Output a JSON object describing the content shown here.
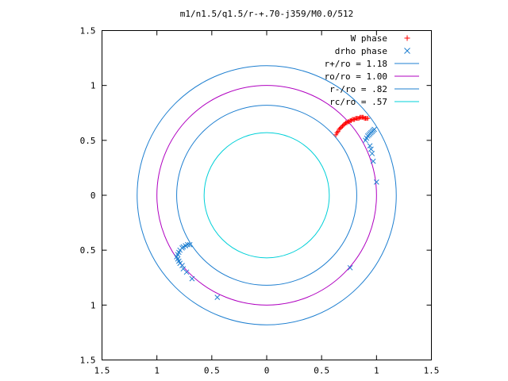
{
  "chart_data": {
    "type": "scatter",
    "title": "m1/n1.5/q1.5/r-+.70-j359/M0.0/512",
    "xlim": [
      -1.5,
      1.5
    ],
    "ylim": [
      -1.5,
      1.5
    ],
    "x_ticks": [
      -1.5,
      -1,
      -0.5,
      0,
      0.5,
      1,
      1.5
    ],
    "y_ticks": [
      -1.5,
      -1,
      -0.5,
      0,
      0.5,
      1,
      1.5
    ],
    "x_tick_labels": [
      "1.5",
      "1",
      "0.5",
      "0",
      "0.5",
      "1",
      "1.5"
    ],
    "y_tick_labels": [
      "1.5",
      "1",
      "0.5",
      "0",
      "0.5",
      "1",
      "1.5"
    ],
    "grid": false,
    "legend_position": "top-right",
    "circles": [
      {
        "name": "r+/ro = 1.18",
        "radius": 1.18,
        "color": "#1e7fd0"
      },
      {
        "name": "ro/ro = 1.00",
        "radius": 1.0,
        "color": "#b000c0"
      },
      {
        "name": "r-/ro = .82",
        "radius": 0.82,
        "color": "#1e7fd0"
      },
      {
        "name": "rc/ro = .57",
        "radius": 0.57,
        "color": "#00d0d8"
      }
    ],
    "series": [
      {
        "name": "W phase",
        "marker": "plus",
        "color": "#ff0000",
        "points": [
          [
            0.63,
            0.55
          ],
          [
            0.64,
            0.57
          ],
          [
            0.65,
            0.58
          ],
          [
            0.66,
            0.6
          ],
          [
            0.67,
            0.61
          ],
          [
            0.68,
            0.62
          ],
          [
            0.69,
            0.63
          ],
          [
            0.7,
            0.64
          ],
          [
            0.71,
            0.65
          ],
          [
            0.72,
            0.66
          ],
          [
            0.73,
            0.66
          ],
          [
            0.74,
            0.67
          ],
          [
            0.75,
            0.67
          ],
          [
            0.76,
            0.68
          ],
          [
            0.77,
            0.68
          ],
          [
            0.78,
            0.69
          ],
          [
            0.79,
            0.69
          ],
          [
            0.8,
            0.69
          ],
          [
            0.81,
            0.7
          ],
          [
            0.82,
            0.7
          ],
          [
            0.83,
            0.7
          ],
          [
            0.84,
            0.7
          ],
          [
            0.85,
            0.71
          ],
          [
            0.86,
            0.71
          ],
          [
            0.87,
            0.71
          ],
          [
            0.88,
            0.71
          ],
          [
            0.89,
            0.7
          ],
          [
            0.9,
            0.7
          ],
          [
            0.91,
            0.7
          ],
          [
            0.92,
            0.7
          ]
        ]
      },
      {
        "name": "drho phase",
        "marker": "cross",
        "color": "#1e7fd0",
        "points": [
          [
            0.9,
            0.5
          ],
          [
            0.91,
            0.52
          ],
          [
            0.92,
            0.54
          ],
          [
            0.93,
            0.55
          ],
          [
            0.94,
            0.56
          ],
          [
            0.95,
            0.57
          ],
          [
            0.96,
            0.58
          ],
          [
            0.97,
            0.59
          ],
          [
            0.98,
            0.6
          ],
          [
            0.94,
            0.45
          ],
          [
            0.95,
            0.42
          ],
          [
            0.96,
            0.38
          ],
          [
            0.97,
            0.31
          ],
          [
            1.0,
            0.12
          ],
          [
            0.76,
            -0.66
          ],
          [
            -0.45,
            -0.93
          ],
          [
            -0.68,
            -0.76
          ],
          [
            -0.73,
            -0.7
          ],
          [
            -0.76,
            -0.67
          ],
          [
            -0.77,
            -0.64
          ],
          [
            -0.79,
            -0.62
          ],
          [
            -0.8,
            -0.6
          ],
          [
            -0.81,
            -0.58
          ],
          [
            -0.82,
            -0.56
          ],
          [
            -0.81,
            -0.54
          ],
          [
            -0.8,
            -0.52
          ],
          [
            -0.79,
            -0.5
          ],
          [
            -0.77,
            -0.48
          ],
          [
            -0.76,
            -0.47
          ],
          [
            -0.74,
            -0.46
          ],
          [
            -0.72,
            -0.45
          ],
          [
            -0.7,
            -0.45
          ]
        ]
      }
    ]
  }
}
